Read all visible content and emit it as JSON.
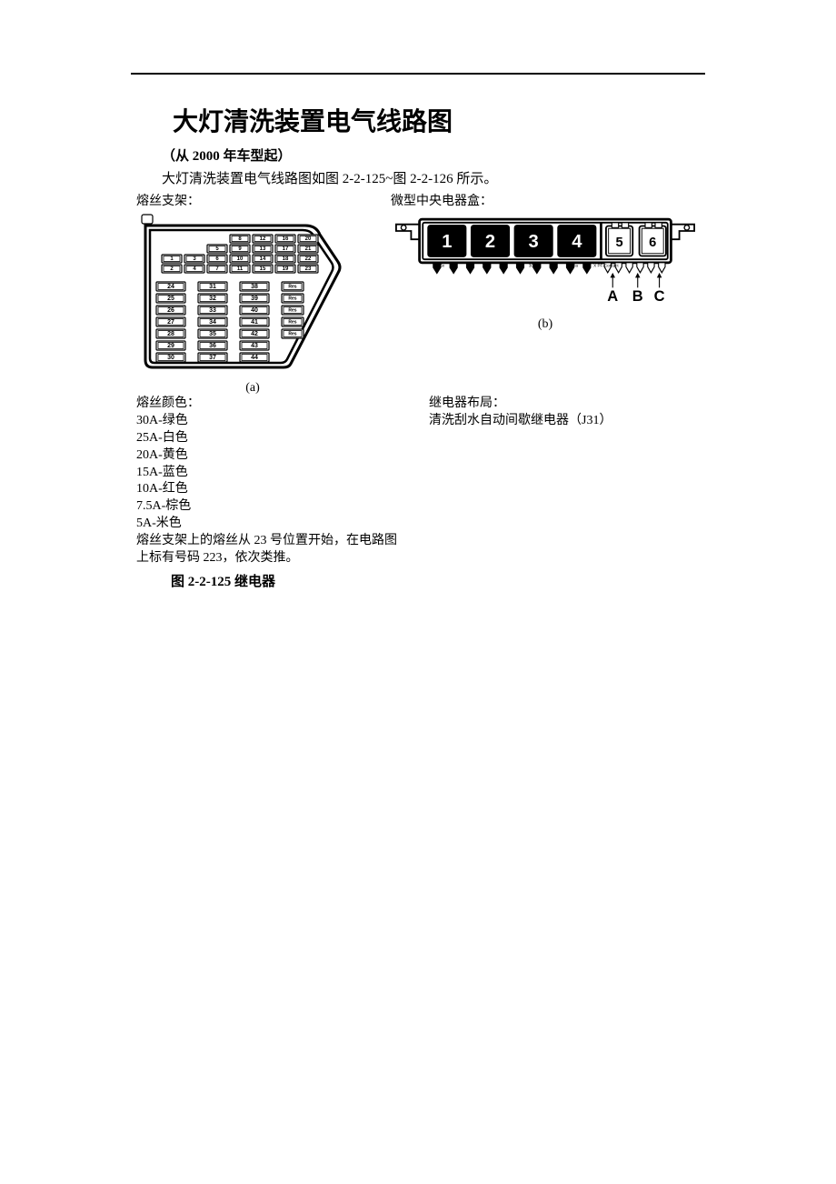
{
  "title": "大灯清洗装置电气线路图",
  "subtitle": "（从 2000 年车型起）",
  "desc": "大灯清洗装置电气线路图如图 2-2-125~图 2-2-126 所示。",
  "left_label": "熔丝支架：",
  "right_label": "微型中央电器盒：",
  "sub_caption_a": "(a)",
  "sub_caption_b": "(b)",
  "color_header": "熔丝颜色：",
  "colors": [
    "30A-绿色",
    "25A-白色",
    "20A-黄色",
    "15A-蓝色",
    "10A-红色",
    "7.5A-棕色",
    "5A-米色"
  ],
  "note1": "熔丝支架上的熔丝从 23 号位置开始，在电路图上标有号码 223，依次类推。",
  "fig_caption": "图 2-2-125    继电器",
  "relay_header": "继电器布局：",
  "relay_desc": "清洗刮水自动间歇继电器（J31）",
  "fuse_rows_top": [
    [
      "8",
      "12",
      "16",
      "20"
    ],
    [
      "5",
      "9",
      "13",
      "17",
      "21"
    ],
    [
      "1",
      "3",
      "6",
      "10",
      "14",
      "18",
      "22"
    ],
    [
      "2",
      "4",
      "7",
      "11",
      "15",
      "19",
      "23"
    ]
  ],
  "fuse_rows_bottom": [
    [
      "24",
      "31",
      "38",
      "Res"
    ],
    [
      "25",
      "32",
      "39",
      "Res"
    ],
    [
      "26",
      "33",
      "40",
      "Res"
    ],
    [
      "27",
      "34",
      "41",
      "Res"
    ],
    [
      "28",
      "35",
      "42",
      "Res"
    ],
    [
      "29",
      "36",
      "43",
      ""
    ],
    [
      "30",
      "37",
      "44",
      ""
    ]
  ],
  "relay_nums_big": [
    "1",
    "2",
    "3",
    "4"
  ],
  "relay_nums_sm": [
    "5",
    "6"
  ],
  "relay_letters": [
    "A",
    "B",
    "C"
  ]
}
